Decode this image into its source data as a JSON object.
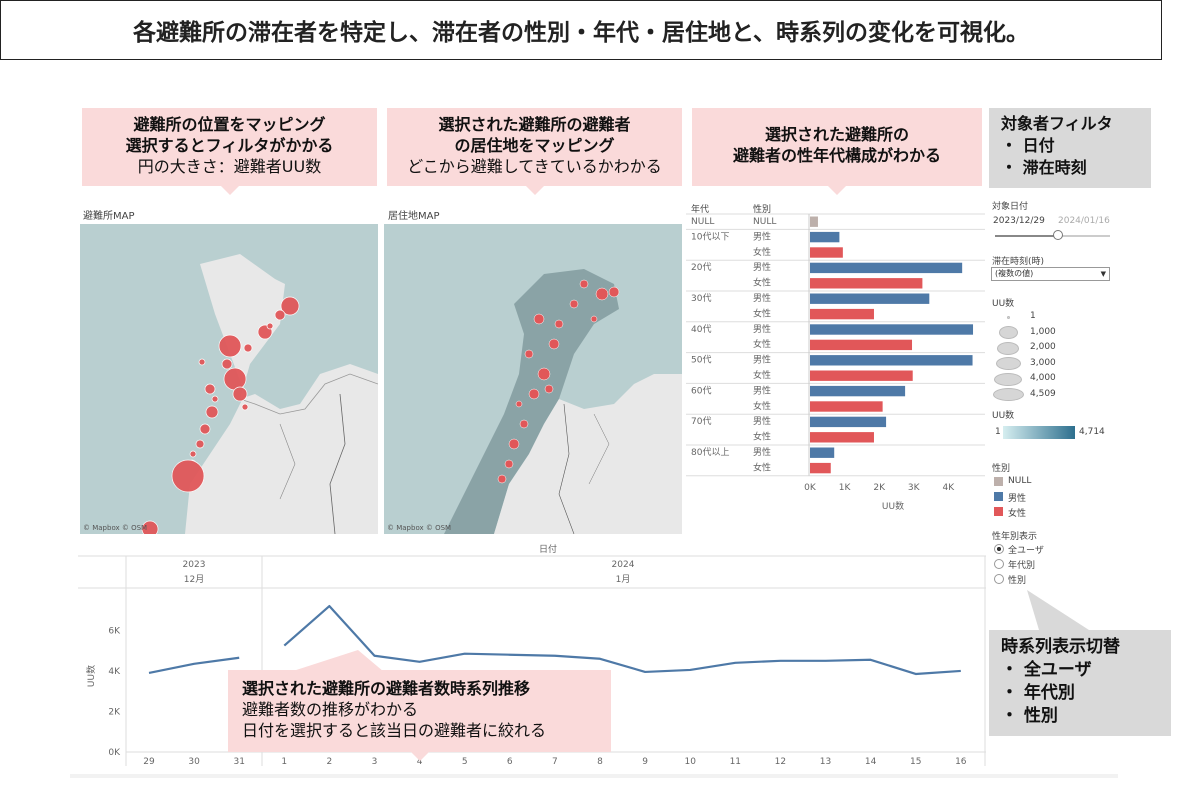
{
  "header": {
    "title": "各避難所の滞在者を特定し、滞在者の性別・年代・居住地と、時系列の変化を可視化。"
  },
  "callouts": {
    "map1": {
      "line1": "避難所の位置をマッピング",
      "line2": "選択するとフィルタがかかる",
      "line3": "円の大きさ：避難者UU数"
    },
    "map2": {
      "line1": "選択された避難所の避難者",
      "line2": "の居住地をマッピング",
      "line3": "どこから避難してきているかわかる"
    },
    "bar": {
      "line1": "選択された避難所の",
      "line2": "避難者の性年代構成がわかる"
    },
    "filter": {
      "title": "対象者フィルタ",
      "items": [
        "・ 日付",
        "・ 滞在時刻"
      ]
    },
    "toggle": {
      "title": "時系列表示切替",
      "items": [
        "・ 全ユーザ",
        "・ 年代別",
        "・ 性別"
      ]
    },
    "timeline": {
      "line1": "選択された避難所の避難者数時系列推移",
      "line2": "避難者数の推移がわかる",
      "line3": "日付を選択すると該当日の避難者に絞れる"
    }
  },
  "map1": {
    "title": "避難所MAP",
    "attribution": "© Mapbox  © OSM"
  },
  "map2": {
    "title": "居住地MAP",
    "attribution": "© Mapbox  © OSM"
  },
  "filters": {
    "date_label": "対象日付",
    "date_start": "2023/12/29",
    "date_end": "2024/01/16",
    "time_label": "滞在時刻(時)",
    "time_value": "(複数の値)",
    "uu_size_label": "UU数",
    "uu_size_values": [
      "1",
      "1,000",
      "2,000",
      "3,000",
      "4,000",
      "4,509"
    ],
    "uu_color_label": "UU数",
    "uu_color_min": "1",
    "uu_color_max": "4,714",
    "gender_label": "性別",
    "gender_items": [
      {
        "label": "NULL",
        "color": "#bdb0ab"
      },
      {
        "label": "男性",
        "color": "#4e79a7"
      },
      {
        "label": "女性",
        "color": "#e15759"
      }
    ],
    "view_label": "性年別表示",
    "view_options": [
      "全ユーザ",
      "年代別",
      "性別"
    ],
    "view_selected": "全ユーザ"
  },
  "bar_headers": {
    "age": "年代",
    "gender": "性別"
  },
  "chart_data": [
    {
      "type": "bar",
      "orientation": "horizontal",
      "xlabel": "UU数",
      "xlim": [
        0,
        4800
      ],
      "xticks": [
        "0K",
        "1K",
        "2K",
        "3K",
        "4K"
      ],
      "rows": [
        {
          "age": "NULL",
          "gender": "NULL",
          "value": 230,
          "color": "#bdb0ab"
        },
        {
          "age": "10代以下",
          "gender": "男性",
          "value": 850,
          "color": "#4e79a7"
        },
        {
          "age": "",
          "gender": "女性",
          "value": 950,
          "color": "#e15759"
        },
        {
          "age": "20代",
          "gender": "男性",
          "value": 4400,
          "color": "#4e79a7"
        },
        {
          "age": "",
          "gender": "女性",
          "value": 3250,
          "color": "#e15759"
        },
        {
          "age": "30代",
          "gender": "男性",
          "value": 3450,
          "color": "#4e79a7"
        },
        {
          "age": "",
          "gender": "女性",
          "value": 1850,
          "color": "#e15759"
        },
        {
          "age": "40代",
          "gender": "男性",
          "value": 4714,
          "color": "#4e79a7"
        },
        {
          "age": "",
          "gender": "女性",
          "value": 2950,
          "color": "#e15759"
        },
        {
          "age": "50代",
          "gender": "男性",
          "value": 4700,
          "color": "#4e79a7"
        },
        {
          "age": "",
          "gender": "女性",
          "value": 2970,
          "color": "#e15759"
        },
        {
          "age": "60代",
          "gender": "男性",
          "value": 2750,
          "color": "#4e79a7"
        },
        {
          "age": "",
          "gender": "女性",
          "value": 2100,
          "color": "#e15759"
        },
        {
          "age": "70代",
          "gender": "男性",
          "value": 2200,
          "color": "#4e79a7"
        },
        {
          "age": "",
          "gender": "女性",
          "value": 1850,
          "color": "#e15759"
        },
        {
          "age": "80代以上",
          "gender": "男性",
          "value": 700,
          "color": "#4e79a7"
        },
        {
          "age": "",
          "gender": "女性",
          "value": 600,
          "color": "#e15759"
        }
      ]
    },
    {
      "type": "line",
      "title": "日付",
      "ylabel": "UU数",
      "ylim": [
        0,
        7500
      ],
      "yticks": [
        "0K",
        "2K",
        "4K",
        "6K"
      ],
      "years": [
        "2023",
        "2024"
      ],
      "months": [
        "12月",
        "1月"
      ],
      "series": [
        {
          "color": "#4e79a7",
          "x": [
            "29",
            "30",
            "31"
          ],
          "y": [
            3900,
            4350,
            4650
          ]
        },
        {
          "color": "#4e79a7",
          "x": [
            "1",
            "2",
            "3",
            "4",
            "5",
            "6",
            "7",
            "8",
            "9",
            "10",
            "11",
            "12",
            "13",
            "14",
            "15",
            "16"
          ],
          "y": [
            5250,
            7200,
            4750,
            4450,
            4850,
            4800,
            4750,
            4600,
            3950,
            4050,
            4400,
            4500,
            4500,
            4550,
            3850,
            4000
          ]
        }
      ]
    }
  ]
}
